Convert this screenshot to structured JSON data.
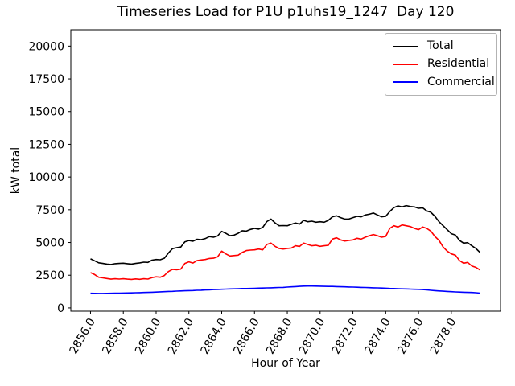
{
  "figure": {
    "title": "Timeseries Load for P1U p1uhs19_1247  Day 120",
    "xlabel": "Hour of Year",
    "ylabel": "kW total"
  },
  "chart_data": {
    "type": "line",
    "title": "Timeseries Load for P1U p1uhs19_1247  Day 120",
    "xlabel": "Hour of Year",
    "ylabel": "kW total",
    "grid": false,
    "legend_position": "upper right",
    "x_start": 2856.0,
    "x_step": 0.25,
    "xlim": [
      2854.8,
      2881.0
    ],
    "ylim": [
      -250,
      21250
    ],
    "xtick_labels": [
      "2856.0",
      "2858.0",
      "2860.0",
      "2862.0",
      "2864.0",
      "2866.0",
      "2868.0",
      "2870.0",
      "2872.0",
      "2874.0",
      "2876.0",
      "2878.0"
    ],
    "yticks": [
      0,
      2500,
      5000,
      7500,
      10000,
      12500,
      15000,
      17500,
      20000
    ],
    "series": [
      {
        "name": "Total",
        "color": "#000000",
        "values": [
          3750,
          3600,
          3450,
          3400,
          3350,
          3320,
          3380,
          3400,
          3420,
          3380,
          3350,
          3400,
          3440,
          3500,
          3480,
          3650,
          3700,
          3680,
          3800,
          4200,
          4530,
          4600,
          4650,
          5050,
          5150,
          5100,
          5250,
          5220,
          5300,
          5450,
          5400,
          5500,
          5850,
          5700,
          5520,
          5560,
          5700,
          5900,
          5870,
          6000,
          6080,
          6020,
          6150,
          6600,
          6790,
          6500,
          6280,
          6290,
          6280,
          6390,
          6490,
          6400,
          6690,
          6590,
          6630,
          6550,
          6590,
          6550,
          6690,
          6960,
          7040,
          6900,
          6790,
          6790,
          6900,
          7000,
          6960,
          7100,
          7160,
          7250,
          7100,
          6960,
          7000,
          7370,
          7660,
          7800,
          7720,
          7820,
          7750,
          7720,
          7610,
          7650,
          7410,
          7310,
          7000,
          6590,
          6280,
          5970,
          5670,
          5570,
          5160,
          4950,
          4990,
          4750,
          4540,
          4240
        ]
      },
      {
        "name": "Residential",
        "color": "#ff0000",
        "values": [
          2700,
          2550,
          2350,
          2300,
          2250,
          2200,
          2230,
          2210,
          2230,
          2200,
          2180,
          2220,
          2190,
          2230,
          2210,
          2320,
          2380,
          2350,
          2480,
          2780,
          2950,
          2920,
          2960,
          3400,
          3520,
          3430,
          3620,
          3660,
          3700,
          3780,
          3800,
          3900,
          4340,
          4130,
          3970,
          4000,
          4030,
          4240,
          4380,
          4420,
          4440,
          4500,
          4440,
          4850,
          4950,
          4710,
          4540,
          4500,
          4550,
          4580,
          4750,
          4700,
          4950,
          4850,
          4750,
          4790,
          4710,
          4750,
          4790,
          5260,
          5360,
          5200,
          5110,
          5160,
          5200,
          5320,
          5260,
          5400,
          5520,
          5610,
          5520,
          5400,
          5460,
          6080,
          6280,
          6180,
          6340,
          6280,
          6220,
          6080,
          5980,
          6180,
          6080,
          5870,
          5460,
          5160,
          4650,
          4340,
          4130,
          4030,
          3620,
          3420,
          3480,
          3210,
          3100,
          2900
        ]
      },
      {
        "name": "Commercial",
        "color": "#0000ff",
        "values": [
          1120,
          1115,
          1110,
          1110,
          1115,
          1120,
          1125,
          1130,
          1140,
          1145,
          1150,
          1160,
          1170,
          1180,
          1190,
          1200,
          1215,
          1230,
          1245,
          1260,
          1270,
          1285,
          1300,
          1310,
          1320,
          1330,
          1345,
          1355,
          1370,
          1385,
          1400,
          1415,
          1430,
          1440,
          1450,
          1460,
          1470,
          1480,
          1485,
          1490,
          1500,
          1510,
          1520,
          1530,
          1540,
          1550,
          1560,
          1570,
          1590,
          1610,
          1630,
          1650,
          1665,
          1670,
          1670,
          1665,
          1660,
          1650,
          1645,
          1640,
          1630,
          1620,
          1610,
          1600,
          1590,
          1580,
          1570,
          1560,
          1550,
          1540,
          1530,
          1520,
          1505,
          1490,
          1480,
          1470,
          1460,
          1450,
          1440,
          1430,
          1420,
          1400,
          1380,
          1350,
          1320,
          1300,
          1280,
          1260,
          1240,
          1225,
          1210,
          1200,
          1190,
          1180,
          1160,
          1130
        ]
      }
    ]
  }
}
